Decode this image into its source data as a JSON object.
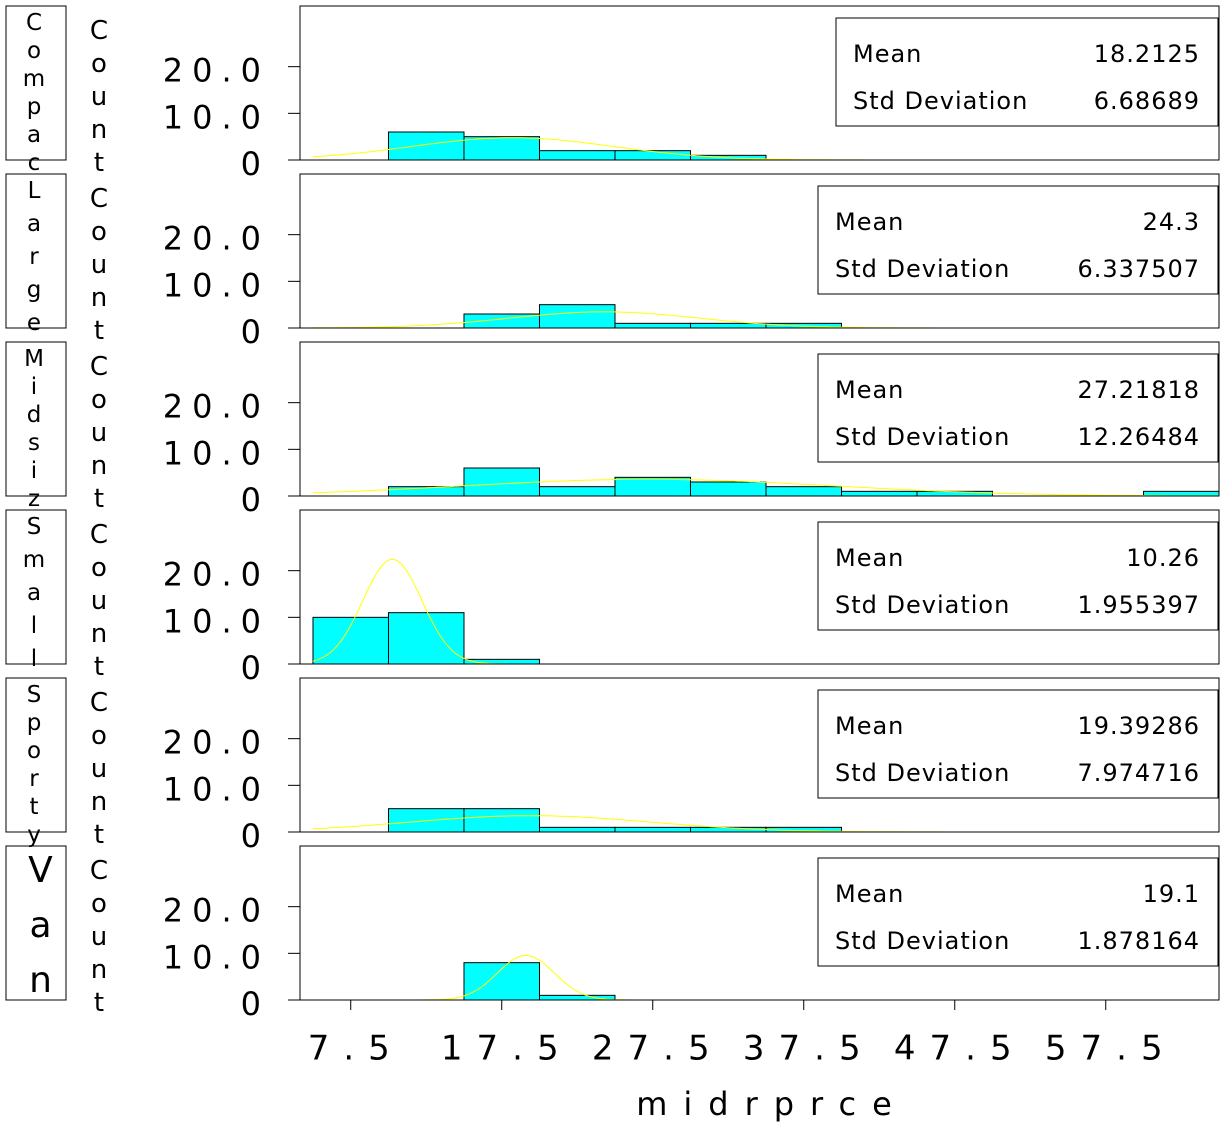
{
  "chart_data": [
    {
      "type": "histogram",
      "group": "Compac",
      "y_label": "Count",
      "color": "#00ffff",
      "curve_color": "#ffff00",
      "bins": [
        5,
        10,
        15,
        20,
        25,
        30,
        35,
        40,
        45,
        50,
        55,
        60,
        65
      ],
      "values": [
        0,
        6,
        5,
        2,
        2,
        1,
        0,
        0,
        0,
        0,
        0,
        0
      ],
      "stats": [
        {
          "label": "Mean",
          "value": 18.2125
        },
        {
          "label": "Std Deviation",
          "value": 6.68689
        }
      ],
      "xlim": [
        4.14,
        65
      ],
      "ylim": [
        0,
        33
      ],
      "yticks": [
        0,
        {
          "value": 10,
          "label": "10.0"
        },
        {
          "value": 20,
          "label": "20.0"
        }
      ]
    },
    {
      "type": "histogram",
      "group": "Large",
      "y_label": "Count",
      "color": "#00ffff",
      "curve_color": "#ffff00",
      "bins": [
        5,
        10,
        15,
        20,
        25,
        30,
        35,
        40,
        45,
        50,
        55,
        60,
        65
      ],
      "values": [
        0,
        0,
        3,
        5,
        1,
        1,
        1,
        0,
        0,
        0,
        0,
        0
      ],
      "stats": [
        {
          "label": "Mean",
          "value": 24.3
        },
        {
          "label": "Std Deviation",
          "value": 6.337507
        }
      ],
      "xlim": [
        4.14,
        65
      ],
      "ylim": [
        0,
        33
      ],
      "yticks": [
        0,
        {
          "value": 10,
          "label": "10.0"
        },
        {
          "value": 20,
          "label": "20.0"
        }
      ]
    },
    {
      "type": "histogram",
      "group": "Midsiz",
      "y_label": "Count",
      "color": "#00ffff",
      "curve_color": "#ffff00",
      "bins": [
        5,
        10,
        15,
        20,
        25,
        30,
        35,
        40,
        45,
        50,
        55,
        60,
        65
      ],
      "values": [
        0,
        2,
        6,
        2,
        4,
        3,
        2,
        1,
        1,
        0,
        0,
        1
      ],
      "stats": [
        {
          "label": "Mean",
          "value": 27.21818
        },
        {
          "label": "Std Deviation",
          "value": 12.26484
        }
      ],
      "xlim": [
        4.14,
        65
      ],
      "ylim": [
        0,
        33
      ],
      "yticks": [
        0,
        {
          "value": 10,
          "label": "10.0"
        },
        {
          "value": 20,
          "label": "20.0"
        }
      ]
    },
    {
      "type": "histogram",
      "group": "Small",
      "y_label": "Count",
      "color": "#00ffff",
      "curve_color": "#ffff00",
      "bins": [
        5,
        10,
        15,
        20,
        25,
        30,
        35,
        40,
        45,
        50,
        55,
        60,
        65
      ],
      "values": [
        10,
        11,
        1,
        0,
        0,
        0,
        0,
        0,
        0,
        0,
        0,
        0
      ],
      "stats": [
        {
          "label": "Mean",
          "value": 10.26
        },
        {
          "label": "Std Deviation",
          "value": 1.955397
        }
      ],
      "xlim": [
        4.14,
        65
      ],
      "ylim": [
        0,
        33
      ],
      "yticks": [
        0,
        {
          "value": 10,
          "label": "10.0"
        },
        {
          "value": 20,
          "label": "20.0"
        }
      ]
    },
    {
      "type": "histogram",
      "group": "Sporty",
      "y_label": "Count",
      "color": "#00ffff",
      "curve_color": "#ffff00",
      "bins": [
        5,
        10,
        15,
        20,
        25,
        30,
        35,
        40,
        45,
        50,
        55,
        60,
        65
      ],
      "values": [
        0,
        5,
        5,
        1,
        1,
        1,
        1,
        0,
        0,
        0,
        0,
        0
      ],
      "stats": [
        {
          "label": "Mean",
          "value": 19.39286
        },
        {
          "label": "Std Deviation",
          "value": 7.974716
        }
      ],
      "xlim": [
        4.14,
        65
      ],
      "ylim": [
        0,
        33
      ],
      "yticks": [
        0,
        {
          "value": 10,
          "label": "10.0"
        },
        {
          "value": 20,
          "label": "20.0"
        }
      ]
    },
    {
      "type": "histogram",
      "group": "Van",
      "y_label": "Count",
      "color": "#00ffff",
      "curve_color": "#ffff00",
      "bins": [
        5,
        10,
        15,
        20,
        25,
        30,
        35,
        40,
        45,
        50,
        55,
        60,
        65
      ],
      "values": [
        0,
        0,
        8,
        1,
        0,
        0,
        0,
        0,
        0,
        0,
        0,
        0
      ],
      "stats": [
        {
          "label": "Mean",
          "value": 19.1
        },
        {
          "label": "Std Deviation",
          "value": 1.878164
        }
      ],
      "xlim": [
        4.14,
        65
      ],
      "ylim": [
        0,
        33
      ],
      "yticks": [
        0,
        {
          "value": 10,
          "label": "10.0"
        },
        {
          "value": 20,
          "label": "20.0"
        }
      ],
      "x_label": "midrprce",
      "xticks": [
        7.5,
        17.5,
        27.5,
        37.5,
        47.5,
        57.5
      ]
    }
  ]
}
